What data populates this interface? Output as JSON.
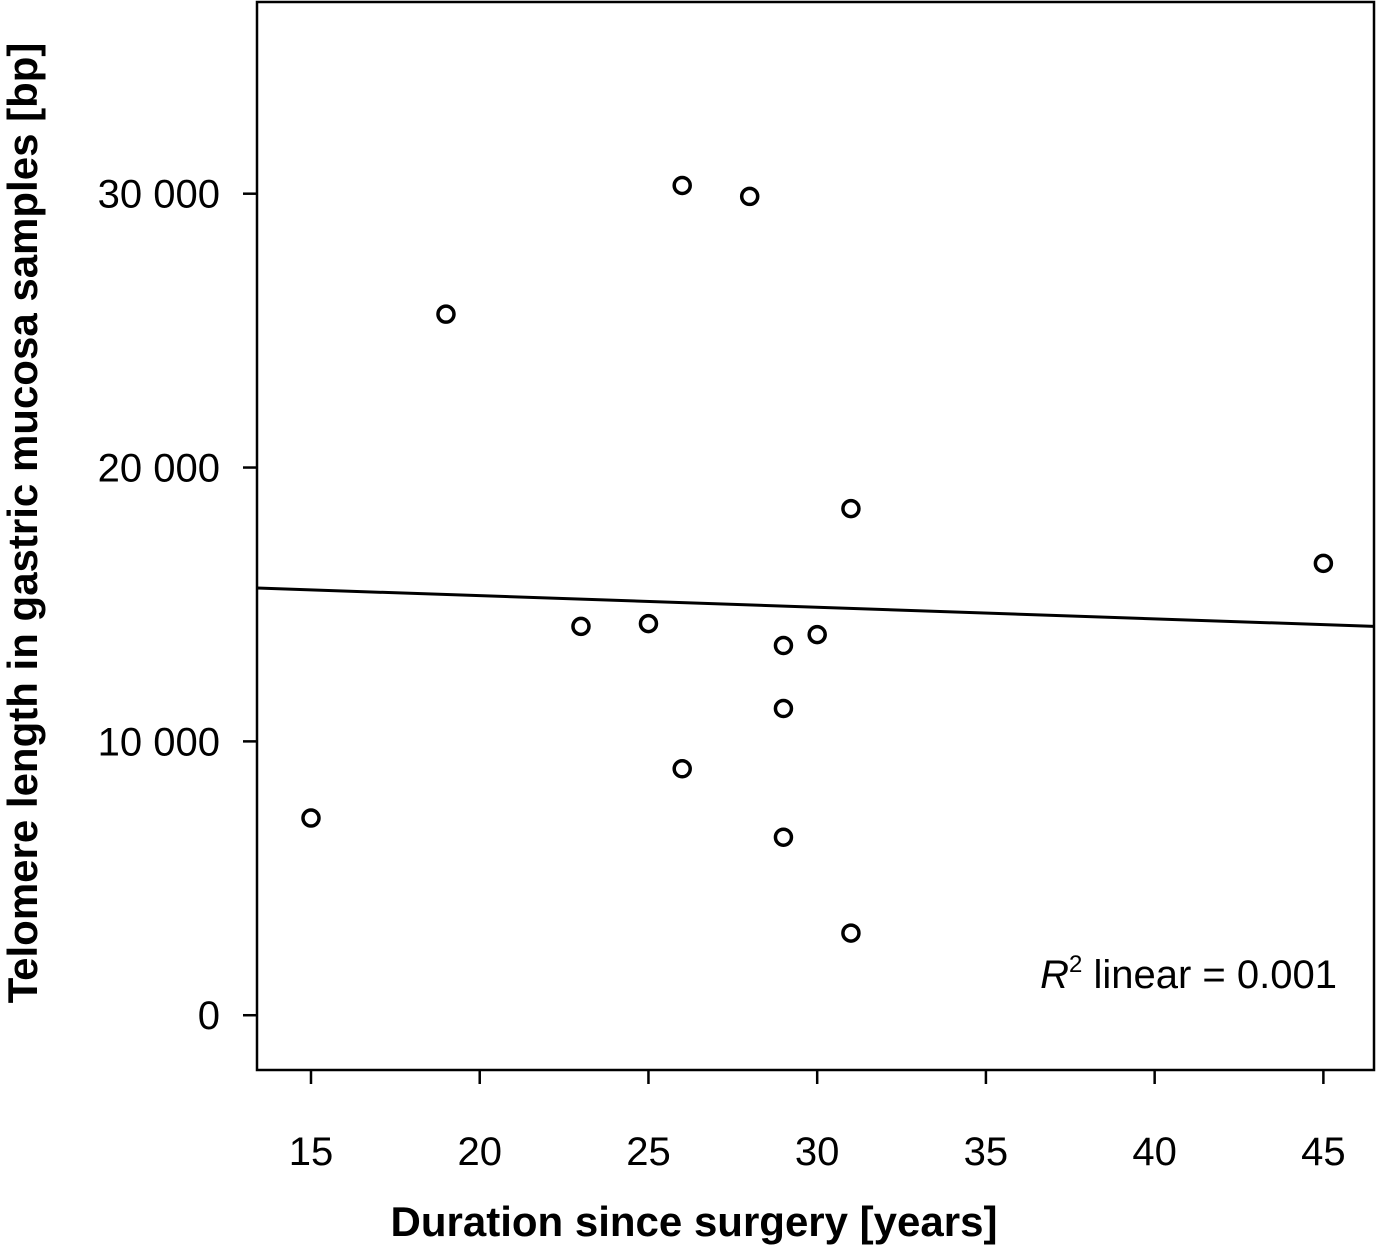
{
  "chart_data": {
    "type": "scatter",
    "xlabel": "Duration since surgery [years]",
    "ylabel": "Telomere length in gastric mucosa samples [bp]",
    "xlim": [
      13.4,
      46.5
    ],
    "ylim": [
      -2000,
      37000
    ],
    "x_ticks": [
      15,
      20,
      25,
      30,
      35,
      40,
      45
    ],
    "x_tick_labels": [
      "15",
      "20",
      "25",
      "30",
      "35",
      "40",
      "45"
    ],
    "y_ticks": [
      0,
      10000,
      20000,
      30000
    ],
    "y_tick_labels": [
      "0",
      "10 000",
      "20 000",
      "30 000"
    ],
    "grid": false,
    "points": [
      {
        "x": 15,
        "y": 7200
      },
      {
        "x": 19,
        "y": 25600
      },
      {
        "x": 23,
        "y": 14200
      },
      {
        "x": 25,
        "y": 14300
      },
      {
        "x": 26,
        "y": 30300
      },
      {
        "x": 26,
        "y": 9000
      },
      {
        "x": 28,
        "y": 29900
      },
      {
        "x": 29,
        "y": 13500
      },
      {
        "x": 29,
        "y": 11200
      },
      {
        "x": 29,
        "y": 6500
      },
      {
        "x": 30,
        "y": 13900
      },
      {
        "x": 31,
        "y": 18500
      },
      {
        "x": 31,
        "y": 3000
      },
      {
        "x": 45,
        "y": 16500
      }
    ],
    "fit_line": {
      "x": [
        13.4,
        46.5
      ],
      "y": [
        15600,
        14200
      ]
    },
    "annotation": {
      "symbol": "R",
      "superscript": "2",
      "text": " linear = 0.001"
    }
  }
}
